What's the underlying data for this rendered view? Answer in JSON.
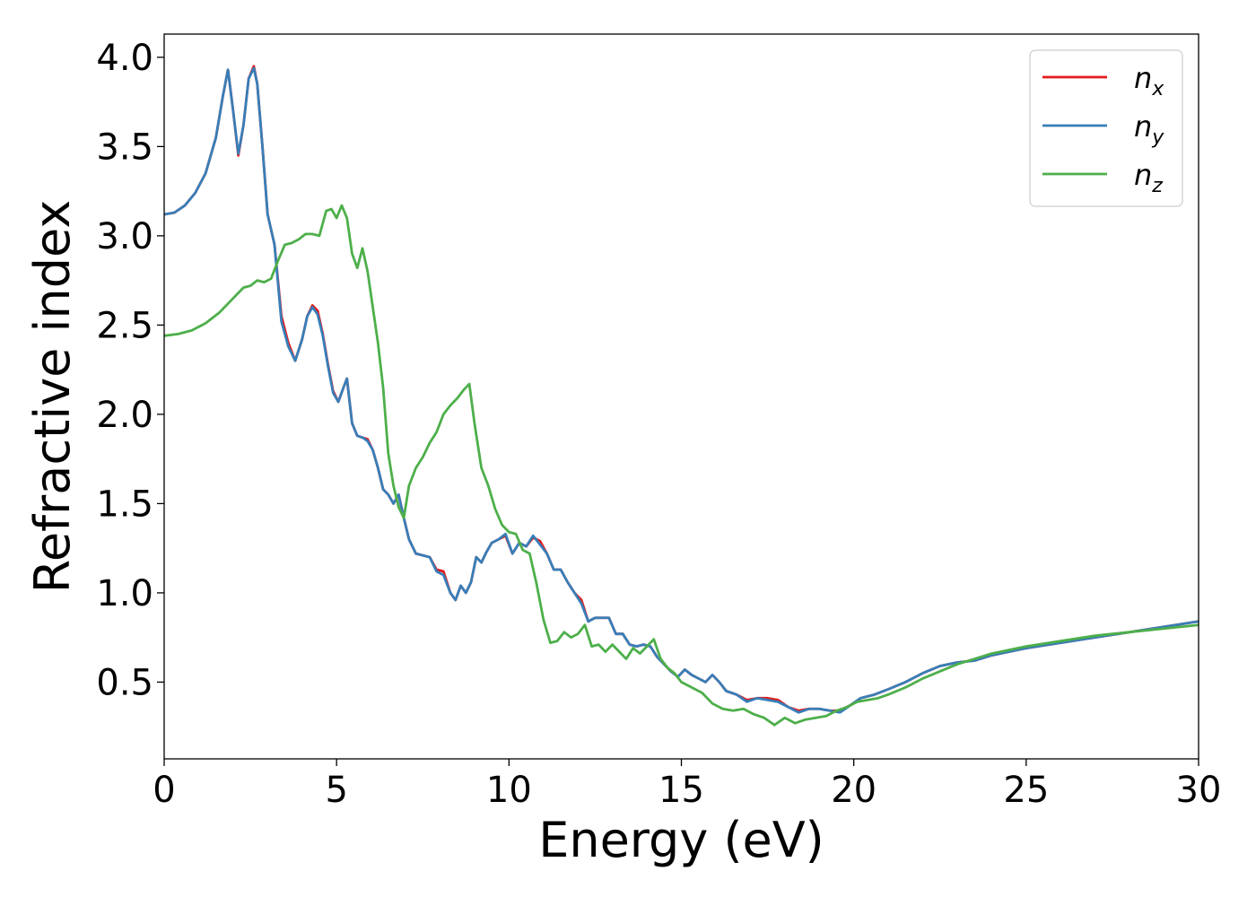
{
  "chart_data": {
    "type": "line",
    "title": "",
    "xlabel": "Energy (eV)",
    "ylabel": "Refractive index",
    "xlim": [
      0,
      30
    ],
    "ylim": [
      0.07,
      4.13
    ],
    "xticks": [
      0,
      5,
      10,
      15,
      20,
      25,
      30
    ],
    "xtick_labels": [
      "0",
      "5",
      "10",
      "15",
      "20",
      "25",
      "30"
    ],
    "yticks": [
      0.5,
      1.0,
      1.5,
      2.0,
      2.5,
      3.0,
      3.5,
      4.0
    ],
    "ytick_labels": [
      "0.5",
      "1.0",
      "1.5",
      "2.0",
      "2.5",
      "3.0",
      "3.5",
      "4.0"
    ],
    "grid": false,
    "legend_position": "top-right",
    "series": [
      {
        "name": "n_x",
        "label_base": "n",
        "label_sub": "x",
        "color": "#e41a1c",
        "x": [
          0,
          0.3,
          0.6,
          0.9,
          1.2,
          1.5,
          1.7,
          1.85,
          2.0,
          2.15,
          2.3,
          2.45,
          2.6,
          2.7,
          2.85,
          3.0,
          3.2,
          3.4,
          3.6,
          3.8,
          4.0,
          4.15,
          4.3,
          4.45,
          4.6,
          4.75,
          4.9,
          5.05,
          5.2,
          5.3,
          5.45,
          5.6,
          5.75,
          5.9,
          6.05,
          6.2,
          6.35,
          6.5,
          6.65,
          6.8,
          6.95,
          7.1,
          7.3,
          7.5,
          7.7,
          7.9,
          8.1,
          8.3,
          8.45,
          8.6,
          8.75,
          8.9,
          9.05,
          9.2,
          9.35,
          9.5,
          9.7,
          9.9,
          10.1,
          10.3,
          10.5,
          10.7,
          10.9,
          11.1,
          11.3,
          11.5,
          11.7,
          11.9,
          12.1,
          12.3,
          12.5,
          12.7,
          12.9,
          13.1,
          13.3,
          13.5,
          13.7,
          13.9,
          14.1,
          14.3,
          14.5,
          14.7,
          14.9,
          15.1,
          15.3,
          15.5,
          15.7,
          15.9,
          16.1,
          16.3,
          16.6,
          16.9,
          17.2,
          17.5,
          17.8,
          18.1,
          18.4,
          18.7,
          19.0,
          19.3,
          19.6,
          19.9,
          20.2,
          20.6,
          21.0,
          21.5,
          22.0,
          22.5,
          23.0,
          23.5,
          24.0,
          25.0,
          26.0,
          27.0,
          28.0,
          29.0,
          30.0
        ],
        "y": [
          3.12,
          3.13,
          3.17,
          3.24,
          3.35,
          3.55,
          3.78,
          3.93,
          3.7,
          3.45,
          3.62,
          3.88,
          3.95,
          3.85,
          3.5,
          3.12,
          2.95,
          2.55,
          2.4,
          2.3,
          2.42,
          2.55,
          2.61,
          2.58,
          2.45,
          2.28,
          2.13,
          2.07,
          2.15,
          2.2,
          1.95,
          1.88,
          1.87,
          1.86,
          1.8,
          1.7,
          1.58,
          1.55,
          1.5,
          1.55,
          1.42,
          1.3,
          1.22,
          1.21,
          1.2,
          1.13,
          1.12,
          1.0,
          0.96,
          1.04,
          1.0,
          1.06,
          1.2,
          1.17,
          1.23,
          1.28,
          1.3,
          1.32,
          1.22,
          1.28,
          1.26,
          1.31,
          1.29,
          1.22,
          1.13,
          1.13,
          1.06,
          1.0,
          0.96,
          0.84,
          0.86,
          0.86,
          0.86,
          0.77,
          0.77,
          0.71,
          0.7,
          0.71,
          0.7,
          0.64,
          0.6,
          0.56,
          0.53,
          0.57,
          0.54,
          0.52,
          0.5,
          0.54,
          0.5,
          0.45,
          0.43,
          0.4,
          0.41,
          0.41,
          0.4,
          0.36,
          0.34,
          0.35,
          0.35,
          0.34,
          0.34,
          0.37,
          0.41,
          0.43,
          0.46,
          0.5,
          0.55,
          0.59,
          0.61,
          0.62,
          0.65,
          0.69,
          0.72,
          0.75,
          0.78,
          0.81,
          0.84
        ]
      },
      {
        "name": "n_y",
        "label_base": "n",
        "label_sub": "y",
        "color": "#377eb8",
        "x": [
          0,
          0.3,
          0.6,
          0.9,
          1.2,
          1.5,
          1.7,
          1.85,
          2.0,
          2.15,
          2.3,
          2.45,
          2.6,
          2.7,
          2.85,
          3.0,
          3.2,
          3.4,
          3.6,
          3.8,
          4.0,
          4.15,
          4.3,
          4.45,
          4.6,
          4.75,
          4.9,
          5.05,
          5.2,
          5.3,
          5.45,
          5.6,
          5.75,
          5.9,
          6.05,
          6.2,
          6.35,
          6.5,
          6.65,
          6.8,
          6.95,
          7.1,
          7.3,
          7.5,
          7.7,
          7.9,
          8.1,
          8.3,
          8.45,
          8.6,
          8.75,
          8.9,
          9.05,
          9.2,
          9.35,
          9.5,
          9.7,
          9.9,
          10.1,
          10.3,
          10.5,
          10.7,
          10.9,
          11.1,
          11.3,
          11.5,
          11.7,
          11.9,
          12.1,
          12.3,
          12.5,
          12.7,
          12.9,
          13.1,
          13.3,
          13.5,
          13.7,
          13.9,
          14.1,
          14.3,
          14.5,
          14.7,
          14.9,
          15.1,
          15.3,
          15.5,
          15.7,
          15.9,
          16.1,
          16.3,
          16.6,
          16.9,
          17.2,
          17.5,
          17.8,
          18.1,
          18.4,
          18.7,
          19.0,
          19.3,
          19.6,
          19.9,
          20.2,
          20.6,
          21.0,
          21.5,
          22.0,
          22.5,
          23.0,
          23.5,
          24.0,
          25.0,
          26.0,
          27.0,
          28.0,
          29.0,
          30.0
        ],
        "y": [
          3.12,
          3.13,
          3.17,
          3.24,
          3.35,
          3.55,
          3.78,
          3.93,
          3.7,
          3.46,
          3.62,
          3.88,
          3.94,
          3.85,
          3.5,
          3.12,
          2.95,
          2.52,
          2.38,
          2.3,
          2.42,
          2.55,
          2.6,
          2.56,
          2.44,
          2.27,
          2.12,
          2.07,
          2.15,
          2.2,
          1.95,
          1.88,
          1.87,
          1.85,
          1.8,
          1.7,
          1.58,
          1.55,
          1.5,
          1.55,
          1.42,
          1.3,
          1.22,
          1.21,
          1.2,
          1.12,
          1.1,
          1.0,
          0.96,
          1.04,
          1.0,
          1.06,
          1.2,
          1.17,
          1.23,
          1.28,
          1.3,
          1.33,
          1.22,
          1.28,
          1.26,
          1.32,
          1.27,
          1.22,
          1.13,
          1.13,
          1.06,
          1.0,
          0.94,
          0.84,
          0.86,
          0.86,
          0.86,
          0.77,
          0.77,
          0.71,
          0.7,
          0.71,
          0.7,
          0.64,
          0.6,
          0.56,
          0.53,
          0.57,
          0.54,
          0.52,
          0.5,
          0.54,
          0.5,
          0.45,
          0.43,
          0.39,
          0.41,
          0.4,
          0.39,
          0.36,
          0.33,
          0.35,
          0.35,
          0.34,
          0.33,
          0.37,
          0.41,
          0.43,
          0.46,
          0.5,
          0.55,
          0.59,
          0.61,
          0.62,
          0.65,
          0.69,
          0.72,
          0.75,
          0.78,
          0.81,
          0.84
        ]
      },
      {
        "name": "n_z",
        "label_base": "n",
        "label_sub": "z",
        "color": "#4daf4a",
        "x": [
          0,
          0.4,
          0.8,
          1.2,
          1.6,
          2.0,
          2.3,
          2.5,
          2.7,
          2.9,
          3.1,
          3.3,
          3.5,
          3.7,
          3.9,
          4.1,
          4.3,
          4.5,
          4.7,
          4.85,
          5.0,
          5.15,
          5.3,
          5.45,
          5.6,
          5.75,
          5.9,
          6.05,
          6.2,
          6.35,
          6.5,
          6.65,
          6.8,
          6.95,
          7.1,
          7.3,
          7.5,
          7.7,
          7.9,
          8.1,
          8.3,
          8.5,
          8.7,
          8.85,
          9.0,
          9.2,
          9.4,
          9.6,
          9.8,
          10.0,
          10.2,
          10.4,
          10.6,
          10.8,
          11.0,
          11.2,
          11.4,
          11.6,
          11.8,
          12.0,
          12.2,
          12.4,
          12.6,
          12.8,
          13.0,
          13.2,
          13.4,
          13.6,
          13.8,
          14.0,
          14.2,
          14.4,
          14.6,
          14.8,
          15.0,
          15.3,
          15.6,
          15.9,
          16.2,
          16.5,
          16.8,
          17.1,
          17.4,
          17.7,
          18.0,
          18.3,
          18.6,
          18.9,
          19.2,
          19.5,
          19.8,
          20.1,
          20.4,
          20.7,
          21.0,
          21.5,
          22.0,
          22.5,
          23.0,
          23.5,
          24.0,
          25.0,
          26.0,
          27.0,
          28.0,
          29.0,
          30.0
        ],
        "y": [
          2.44,
          2.45,
          2.47,
          2.51,
          2.57,
          2.65,
          2.71,
          2.72,
          2.75,
          2.74,
          2.76,
          2.86,
          2.95,
          2.96,
          2.98,
          3.01,
          3.01,
          3.0,
          3.14,
          3.15,
          3.1,
          3.17,
          3.1,
          2.9,
          2.82,
          2.93,
          2.8,
          2.6,
          2.4,
          2.15,
          1.78,
          1.6,
          1.48,
          1.42,
          1.6,
          1.7,
          1.76,
          1.84,
          1.9,
          2.0,
          2.05,
          2.09,
          2.14,
          2.17,
          1.95,
          1.7,
          1.6,
          1.47,
          1.38,
          1.34,
          1.33,
          1.24,
          1.22,
          1.05,
          0.85,
          0.72,
          0.73,
          0.78,
          0.75,
          0.77,
          0.82,
          0.7,
          0.71,
          0.67,
          0.71,
          0.67,
          0.63,
          0.69,
          0.66,
          0.7,
          0.74,
          0.63,
          0.58,
          0.55,
          0.5,
          0.47,
          0.44,
          0.38,
          0.35,
          0.34,
          0.35,
          0.32,
          0.3,
          0.26,
          0.3,
          0.27,
          0.29,
          0.3,
          0.31,
          0.34,
          0.36,
          0.39,
          0.4,
          0.41,
          0.43,
          0.47,
          0.52,
          0.56,
          0.6,
          0.63,
          0.66,
          0.7,
          0.73,
          0.76,
          0.78,
          0.8,
          0.82
        ]
      }
    ]
  }
}
